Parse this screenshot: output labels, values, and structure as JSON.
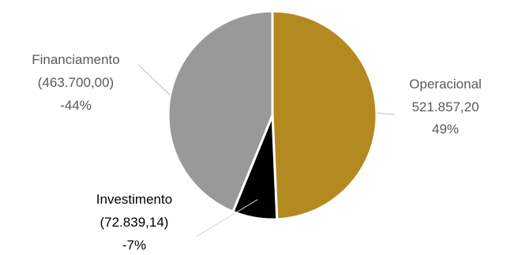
{
  "chart_data": {
    "type": "pie",
    "title": "",
    "slices": [
      {
        "name": "Operacional",
        "value": 521857.2,
        "value_label": "521.857,20",
        "pct_label": "49%",
        "color": "#B38A20",
        "label_color": "#595959"
      },
      {
        "name": "Investimento",
        "value": 72839.14,
        "value_label": "(72.839,14)",
        "pct_label": "-7%",
        "color": "#000000",
        "label_color": "#000000"
      },
      {
        "name": "Financiamento",
        "value": 463700.0,
        "value_label": "(463.700,00)",
        "pct_label": "-44%",
        "color": "#999999",
        "label_color": "#595959"
      }
    ],
    "start_angle_deg": 0,
    "direction": "clockwise",
    "legend": "none",
    "leader_line_color": "#bfbfbf"
  }
}
